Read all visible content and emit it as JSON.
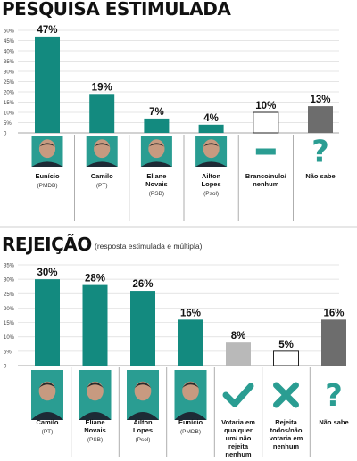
{
  "charts": [
    {
      "title": "PESQUISA ESTIMULADA",
      "subtitle": "",
      "type": "bar",
      "ylim": [
        0,
        50
      ],
      "ticks": [
        "50%",
        "45%",
        "40%",
        "35%",
        "30%",
        "25%",
        "20%",
        "15%",
        "10%",
        "5%",
        "0"
      ],
      "categories": [
        {
          "name": "Eunício",
          "sub": "(PMDB)",
          "value": 47,
          "label": "47%",
          "style": "teal",
          "icon": "candidate-photo"
        },
        {
          "name": "Camilo",
          "sub": "(PT)",
          "value": 19,
          "label": "19%",
          "style": "teal",
          "icon": "candidate-photo"
        },
        {
          "name": "Eliane Novais",
          "sub": "(PSB)",
          "value": 7,
          "label": "7%",
          "style": "teal",
          "icon": "candidate-photo"
        },
        {
          "name": "Ailton Lopes",
          "sub": "(Psol)",
          "value": 4,
          "label": "4%",
          "style": "teal",
          "icon": "candidate-photo"
        },
        {
          "name": "Branco/nulo/ nenhum",
          "sub": "",
          "value": 10,
          "label": "10%",
          "style": "outline",
          "icon": "dash-icon"
        },
        {
          "name": "Não sabe",
          "sub": "",
          "value": 13,
          "label": "13%",
          "style": "gray",
          "icon": "question-icon"
        }
      ]
    },
    {
      "title": "REJEIÇÃO",
      "subtitle": "(resposta estimulada e múltipla)",
      "type": "bar",
      "ylim": [
        0,
        35
      ],
      "ticks": [
        "35%",
        "30%",
        "25%",
        "20%",
        "15%",
        "10%",
        "5%",
        "0"
      ],
      "categories": [
        {
          "name": "Camilo",
          "sub": "(PT)",
          "value": 30,
          "label": "30%",
          "style": "teal",
          "icon": "candidate-photo"
        },
        {
          "name": "Eliane Novais",
          "sub": "(PSB)",
          "value": 28,
          "label": "28%",
          "style": "teal",
          "icon": "candidate-photo"
        },
        {
          "name": "Ailton Lopes",
          "sub": "(Psol)",
          "value": 26,
          "label": "26%",
          "style": "teal",
          "icon": "candidate-photo"
        },
        {
          "name": "Eunício",
          "sub": "(PMDB)",
          "value": 16,
          "label": "16%",
          "style": "teal",
          "icon": "candidate-photo"
        },
        {
          "name": "Votaria em qualquer um/ não rejeita nenhum",
          "sub": "",
          "value": 8,
          "label": "8%",
          "style": "lightgray",
          "icon": "check-icon"
        },
        {
          "name": "Rejeita todos/não votaria em nenhum",
          "sub": "",
          "value": 5,
          "label": "5%",
          "style": "outline",
          "icon": "x-icon"
        },
        {
          "name": "Não sabe",
          "sub": "",
          "value": 16,
          "label": "16%",
          "style": "gray",
          "icon": "question-icon"
        }
      ]
    }
  ],
  "colors": {
    "teal": "#138a7f",
    "gray": "#6d6d6d",
    "lightgray": "#b9b9b9",
    "outline": "#ffffff",
    "icon_teal": "#2a9d92"
  }
}
